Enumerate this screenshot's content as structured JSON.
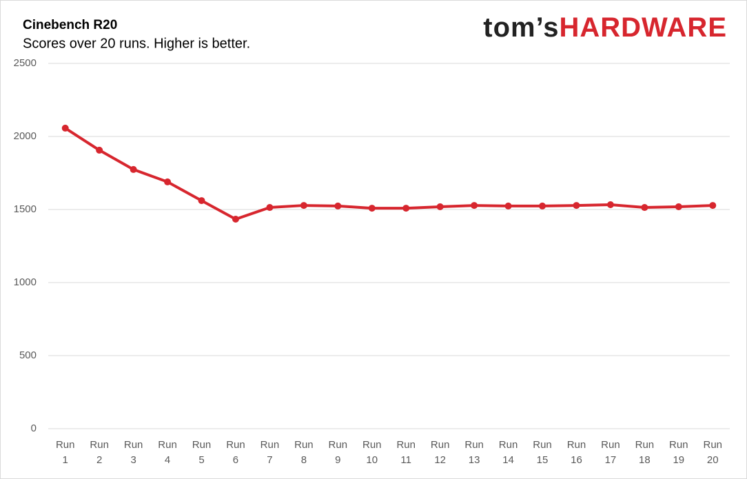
{
  "chart_data": {
    "type": "line",
    "title": "Cinebench R20",
    "subtitle": "Scores over 20 runs. Higher is better.",
    "logo": {
      "prefix": "tom’s",
      "brand": "HARDWARE"
    },
    "categories": [
      "Run 1",
      "Run 2",
      "Run 3",
      "Run 4",
      "Run 5",
      "Run 6",
      "Run 7",
      "Run 8",
      "Run 9",
      "Run 10",
      "Run 11",
      "Run 12",
      "Run 13",
      "Run 14",
      "Run 15",
      "Run 16",
      "Run 17",
      "Run 18",
      "Run 19",
      "Run 20"
    ],
    "values": [
      2057,
      1906,
      1774,
      1689,
      1561,
      1434,
      1514,
      1528,
      1524,
      1509,
      1509,
      1519,
      1528,
      1524,
      1524,
      1528,
      1533,
      1514,
      1519,
      1528
    ],
    "color": "#d7262e",
    "ylim": [
      0,
      2500
    ],
    "yticks": [
      0,
      500,
      1000,
      1500,
      2000,
      2500
    ],
    "grid": true
  }
}
